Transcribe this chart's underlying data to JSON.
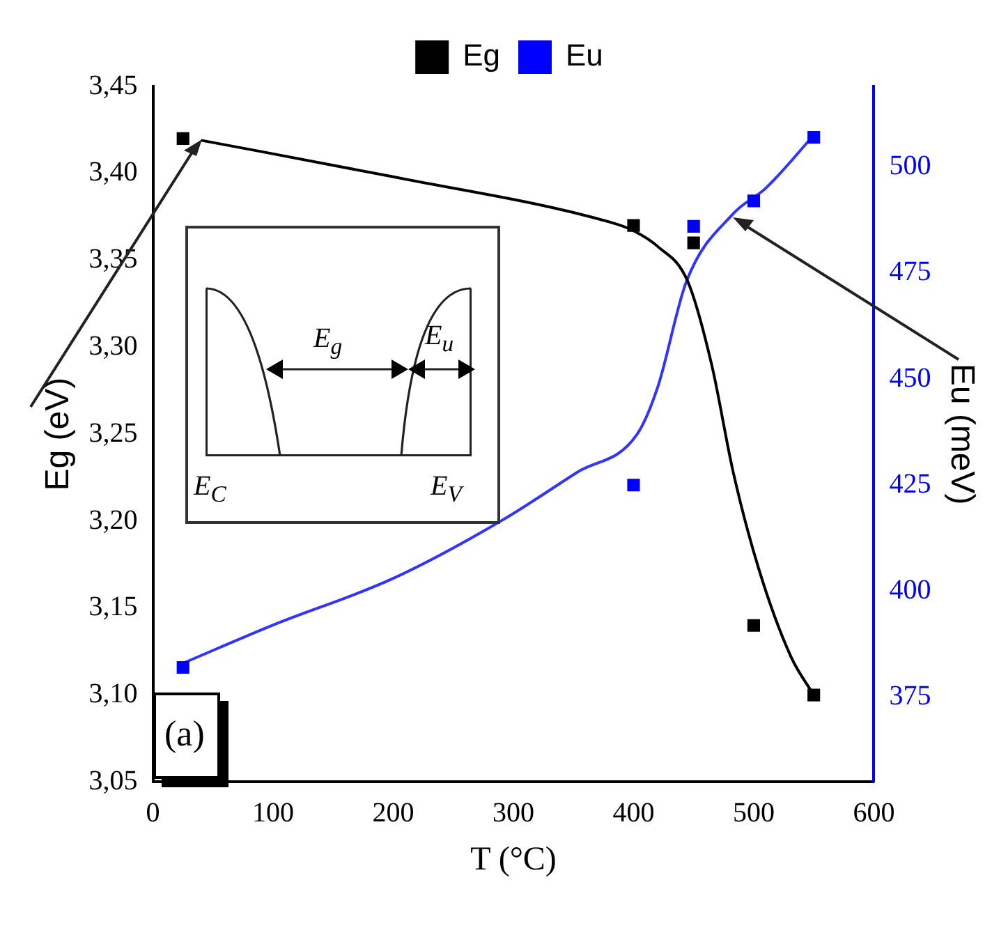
{
  "chart_data": {
    "type": "scatter",
    "xlabel": "T (°C)",
    "ylabel": "Eg (eV)",
    "y2label": "Eu (meV)",
    "xlim": [
      0,
      600
    ],
    "xticks": [
      0,
      100,
      200,
      300,
      400,
      500,
      600
    ],
    "ylim": [
      3.05,
      3.45
    ],
    "yticks": [
      {
        "value": 3.05,
        "label": "3,05"
      },
      {
        "value": 3.1,
        "label": "3,10"
      },
      {
        "value": 3.15,
        "label": "3,15"
      },
      {
        "value": 3.2,
        "label": "3,20"
      },
      {
        "value": 3.25,
        "label": "3,25"
      },
      {
        "value": 3.3,
        "label": "3,30"
      },
      {
        "value": 3.35,
        "label": "3,35"
      },
      {
        "value": 3.4,
        "label": "3,40"
      },
      {
        "value": 3.45,
        "label": "3,45"
      }
    ],
    "y2lim": [
      355,
      519
    ],
    "y2ticks": [
      375,
      400,
      425,
      450,
      475,
      500
    ],
    "legend": "top",
    "marker": "square",
    "grid": false,
    "annotations": [
      "(a)",
      "E$_{g}$",
      "E$_{u}$",
      "E$_{C}$",
      "E$_{V}$"
    ],
    "series": [
      {
        "name": "Eg",
        "color": "#000000",
        "x": [
          25,
          400,
          450,
          500,
          550
        ],
        "values": [
          3.42,
          3.37,
          3.36,
          3.14,
          3.1
        ]
      },
      {
        "name": "Eu",
        "color": "#0000ff",
        "axis": "y2",
        "x": [
          25,
          400,
          450,
          500,
          550
        ],
        "values": [
          382,
          425,
          486,
          492,
          507
        ]
      },
      {
        "type": "line",
        "color": "#000000",
        "marker": "none",
        "x": [
          40,
          200,
          380,
          400,
          420,
          445,
          465,
          483,
          504,
          531,
          550
        ],
        "values": [
          3.419,
          3.398,
          3.372,
          3.367,
          3.358,
          3.338,
          3.29,
          3.228,
          3.173,
          3.122,
          3.1
        ]
      },
      {
        "type": "line",
        "color": "#3333ff",
        "marker": "none",
        "axis": "y2",
        "x": [
          25,
          100,
          200,
          290,
          353,
          403,
          420,
          444,
          483,
          510,
          550
        ],
        "values": [
          383,
          392,
          403,
          416.6,
          428,
          437,
          448,
          473,
          489,
          495,
          507.5
        ]
      }
    ]
  }
}
